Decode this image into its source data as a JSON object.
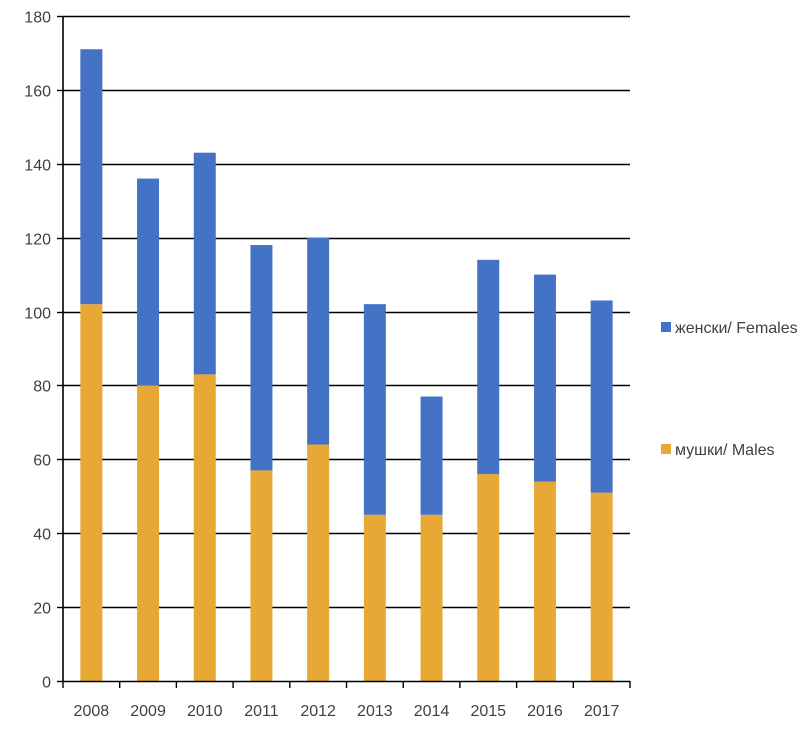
{
  "chart_data": {
    "type": "bar",
    "stacked": true,
    "categories": [
      "2008",
      "2009",
      "2010",
      "2011",
      "2012",
      "2013",
      "2014",
      "2015",
      "2016",
      "2017"
    ],
    "series": [
      {
        "name": "мушки/ Males",
        "color": "#E8A835",
        "values": [
          102,
          80,
          83,
          57,
          64,
          45,
          45,
          56,
          54,
          51
        ]
      },
      {
        "name": "женски/ Females",
        "color": "#4472C4",
        "values": [
          69,
          56,
          60,
          61,
          56,
          57,
          32,
          58,
          56,
          52
        ]
      }
    ],
    "ylim": [
      0,
      180
    ],
    "yticks": [
      0,
      20,
      40,
      60,
      80,
      100,
      120,
      140,
      160,
      180
    ],
    "grid": true,
    "legend_position": "right",
    "legend": [
      {
        "label": "женски/ Females",
        "color": "#4472C4"
      },
      {
        "label": "мушки/ Males",
        "color": "#E8A835"
      }
    ]
  }
}
